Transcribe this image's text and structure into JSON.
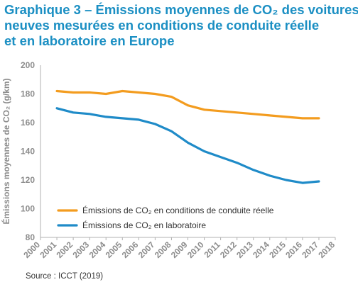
{
  "title_lines": [
    "Graphique 3 – Émissions moyennes de CO₂ des voitures",
    "neuves mesurées en conditions de conduite réelle",
    "et en laboratoire en Europe"
  ],
  "source": "Source : ICCT (2019)",
  "colors": {
    "title": "#1b8fc3",
    "real_world": "#f39c1f",
    "laboratory": "#1f8bc8",
    "axis": "#8c8c8c"
  },
  "chart_data": {
    "type": "line",
    "title": "Graphique 3 – Émissions moyennes de CO₂ des voitures neuves mesurées en conditions de conduite réelle et en laboratoire en Europe",
    "xlabel": "",
    "ylabel": "Émissions moyennes de CO₂ (g/km)",
    "xlim": [
      2000,
      2018
    ],
    "ylim": [
      80,
      200
    ],
    "x_ticks": [
      2000,
      2001,
      2002,
      2003,
      2004,
      2005,
      2006,
      2007,
      2008,
      2009,
      2010,
      2011,
      2012,
      2013,
      2014,
      2015,
      2016,
      2017,
      2018
    ],
    "y_ticks": [
      80,
      100,
      120,
      140,
      160,
      180,
      200
    ],
    "grid": false,
    "legend_position": "bottom-left",
    "x": [
      2001,
      2002,
      2003,
      2004,
      2005,
      2006,
      2007,
      2008,
      2009,
      2010,
      2011,
      2012,
      2013,
      2014,
      2015,
      2016,
      2017
    ],
    "series": [
      {
        "name": "Émissions de CO₂ en conditions de conduite réelle",
        "color": "#f39c1f",
        "values": [
          182,
          181,
          181,
          180,
          182,
          181,
          180,
          178,
          172,
          169,
          168,
          167,
          166,
          165,
          164,
          163,
          163
        ]
      },
      {
        "name": "Émissions de CO₂ en laboratoire",
        "color": "#1f8bc8",
        "values": [
          170,
          167,
          166,
          164,
          163,
          162,
          159,
          154,
          146,
          140,
          136,
          132,
          127,
          123,
          120,
          118,
          119
        ]
      }
    ]
  }
}
